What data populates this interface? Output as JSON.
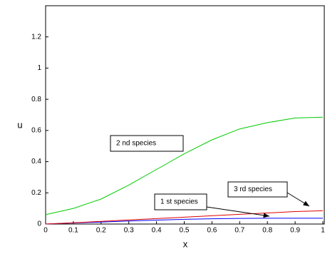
{
  "chart_data": {
    "type": "line",
    "xlabel": "x",
    "ylabel": "u",
    "x": [
      0,
      0.1,
      0.2,
      0.3,
      0.4,
      0.5,
      0.6,
      0.7,
      0.8,
      0.9,
      1
    ],
    "series": [
      {
        "name": "1 st species",
        "color": "#0000ff",
        "values": [
          0,
          0.007,
          0.013,
          0.019,
          0.025,
          0.03,
          0.034,
          0.036,
          0.037,
          0.037,
          0.037
        ]
      },
      {
        "name": "2 nd species",
        "color": "#00cc00",
        "values": [
          0.06,
          0.1,
          0.16,
          0.25,
          0.35,
          0.45,
          0.54,
          0.61,
          0.65,
          0.68,
          0.685
        ]
      },
      {
        "name": "3 rd species",
        "color": "#dd0000",
        "values": [
          0,
          0.008,
          0.017,
          0.026,
          0.035,
          0.044,
          0.053,
          0.062,
          0.071,
          0.08,
          0.085
        ]
      }
    ],
    "xlim": [
      0,
      1
    ],
    "xticks": [
      0,
      0.1,
      0.2,
      0.3,
      0.4,
      0.5,
      0.6,
      0.7,
      0.8,
      0.9,
      1
    ],
    "ylim": [
      0,
      1.4
    ],
    "yticks": [
      0,
      0.2,
      0.4,
      0.6,
      0.8,
      1,
      1.2
    ]
  }
}
